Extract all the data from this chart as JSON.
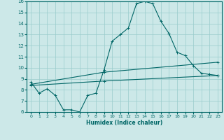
{
  "title": "",
  "xlabel": "Humidex (Indice chaleur)",
  "bg_color": "#cce8e8",
  "line_color": "#006666",
  "grid_color": "#99cccc",
  "xlim": [
    -0.5,
    23.5
  ],
  "ylim": [
    6,
    16
  ],
  "xticks": [
    0,
    1,
    2,
    3,
    4,
    5,
    6,
    7,
    8,
    9,
    10,
    11,
    12,
    13,
    14,
    15,
    16,
    17,
    18,
    19,
    20,
    21,
    22,
    23
  ],
  "yticks": [
    6,
    7,
    8,
    9,
    10,
    11,
    12,
    13,
    14,
    15,
    16
  ],
  "line1_x": [
    0,
    1,
    2,
    3,
    4,
    5,
    6,
    7,
    8,
    9,
    10,
    11,
    12,
    13,
    14,
    15,
    16,
    17,
    18,
    19,
    20,
    21,
    22,
    23
  ],
  "line1_y": [
    8.7,
    7.7,
    8.1,
    7.5,
    6.2,
    6.2,
    6.0,
    7.5,
    7.7,
    9.8,
    12.4,
    13.0,
    13.6,
    15.8,
    16.0,
    15.8,
    14.2,
    13.1,
    11.4,
    11.1,
    10.2,
    9.5,
    9.4,
    9.3
  ],
  "line2_x": [
    0,
    9,
    23
  ],
  "line2_y": [
    8.5,
    9.6,
    10.5
  ],
  "line3_x": [
    0,
    9,
    23
  ],
  "line3_y": [
    8.4,
    8.8,
    9.3
  ],
  "marker": "+"
}
